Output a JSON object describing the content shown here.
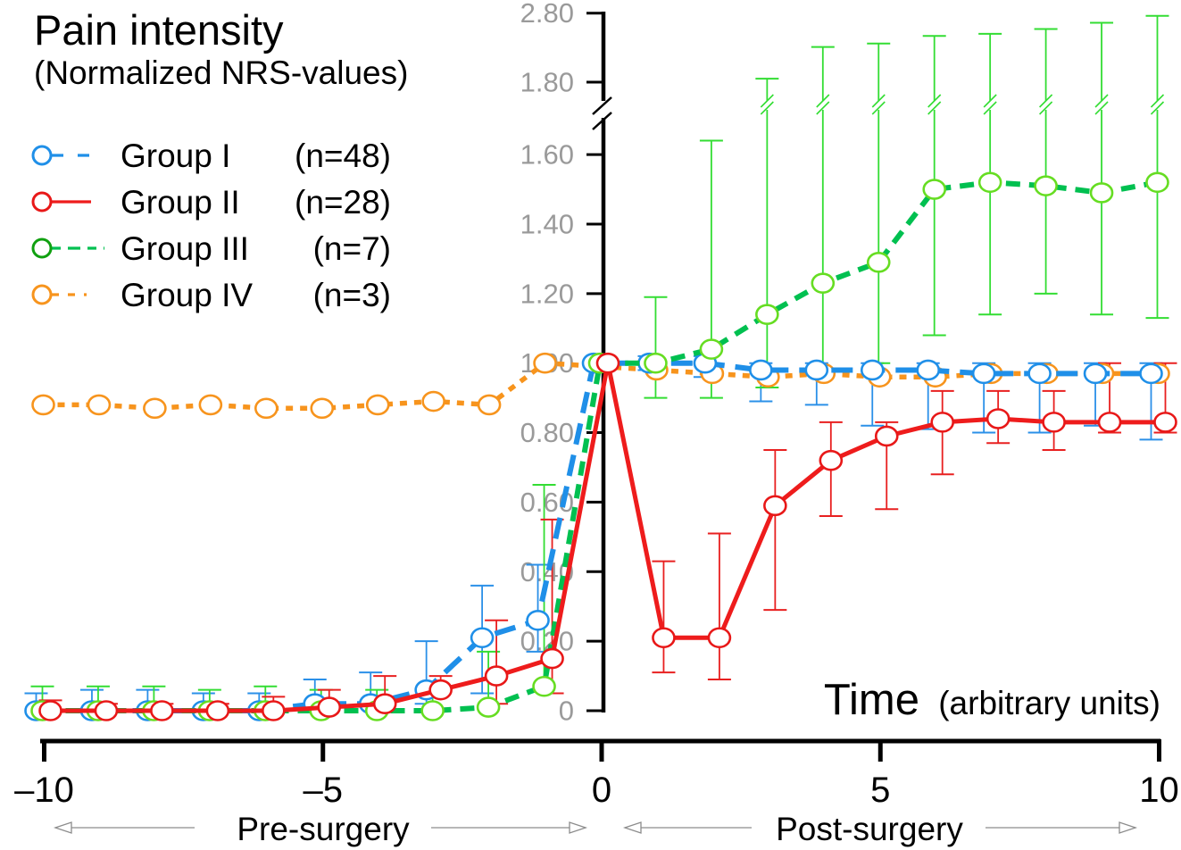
{
  "chart_data": {
    "type": "line",
    "title": "Pain intensity",
    "subtitle": "(Normalized NRS-values)",
    "xlabel": "Time",
    "xlabel_note": "(arbitrary units)",
    "ylabel": "Pain intensity (Normalized NRS-values)",
    "grid": false,
    "legend_position": "top-left",
    "xlim": [
      -10,
      10
    ],
    "ylim": [
      0,
      2.8
    ],
    "yaxis_break": [
      1.6,
      1.8
    ],
    "xticks": [
      -10,
      -5,
      0,
      5,
      10
    ],
    "xtick_labels": [
      "–10",
      "–5",
      "0",
      "5",
      "10"
    ],
    "yticks": [
      0,
      0.2,
      0.4,
      0.6,
      0.8,
      1.0,
      1.2,
      1.4,
      1.6,
      1.8,
      2.8
    ],
    "ytick_labels": [
      "0",
      "0.20",
      "0.40",
      "0.60",
      "0.80",
      "1.00",
      "1.20",
      "1.40",
      "1.60",
      "1.80",
      "2.80"
    ],
    "phase_annotations": [
      {
        "label": "Pre-surgery",
        "range": [
          -10,
          0
        ]
      },
      {
        "label": "Post-surgery",
        "range": [
          0,
          10
        ]
      }
    ],
    "x": [
      -10,
      -9,
      -8,
      -7,
      -6,
      -5,
      -4,
      -3,
      -2,
      -1,
      0,
      1,
      2,
      3,
      4,
      5,
      6,
      7,
      8,
      9,
      10
    ],
    "series": [
      {
        "name": "Group I",
        "n_label": "(n=48)",
        "line_style": "dashed",
        "color": "#1f8fe8",
        "marker_color": "#1f8fe8",
        "errorbar_color": "#2b90e8",
        "values": [
          0.0,
          0.0,
          0.0,
          0.0,
          0.0,
          0.02,
          0.02,
          0.06,
          0.21,
          0.26,
          1.0,
          1.0,
          1.0,
          0.98,
          0.98,
          0.98,
          0.98,
          0.97,
          0.97,
          0.97,
          0.97
        ],
        "error_upper": [
          0.05,
          0.06,
          0.06,
          0.05,
          0.05,
          0.09,
          0.11,
          0.2,
          0.36,
          0.42,
          null,
          1.02,
          1.02,
          1.0,
          1.0,
          1.0,
          1.0,
          1.0,
          1.0,
          1.0,
          1.0
        ],
        "error_lower": [
          null,
          null,
          null,
          null,
          null,
          null,
          null,
          0.02,
          0.05,
          0.17,
          null,
          0.98,
          0.96,
          0.89,
          0.88,
          0.82,
          0.81,
          0.8,
          0.8,
          0.82,
          0.78
        ]
      },
      {
        "name": "Group II",
        "n_label": "(n=28)",
        "line_style": "solid",
        "color": "#ee1c1c",
        "marker_color": "#e81818",
        "errorbar_color": "#e82020",
        "values": [
          0.0,
          0.0,
          0.0,
          0.0,
          0.0,
          0.01,
          0.02,
          0.06,
          0.1,
          0.15,
          1.0,
          0.21,
          0.21,
          0.59,
          0.72,
          0.79,
          0.83,
          0.84,
          0.83,
          0.83,
          0.83
        ],
        "error_upper": [
          0.03,
          0.02,
          0.02,
          0.02,
          0.04,
          0.06,
          0.1,
          0.1,
          0.26,
          0.55,
          null,
          0.43,
          0.51,
          0.75,
          0.83,
          0.83,
          0.92,
          0.92,
          0.92,
          1.0,
          1.0
        ],
        "error_lower": [
          null,
          null,
          null,
          null,
          null,
          null,
          null,
          null,
          0.02,
          0.05,
          null,
          0.11,
          0.09,
          0.29,
          0.56,
          0.58,
          0.68,
          0.77,
          0.75,
          0.8,
          0.8
        ]
      },
      {
        "name": "Group III",
        "n_label": "(n=7)",
        "line_style": "dashed",
        "color": "#00c050",
        "marker_color": "#66dd22",
        "legend_marker_color": "#10a010",
        "errorbar_color": "#33dd33",
        "values": [
          0.0,
          0.0,
          0.0,
          0.0,
          0.0,
          0.0,
          0.0,
          0.0,
          0.01,
          0.07,
          1.0,
          1.0,
          1.04,
          1.14,
          1.23,
          1.29,
          1.5,
          1.52,
          1.51,
          1.49,
          1.52
        ],
        "error_upper": [
          0.07,
          0.07,
          0.07,
          0.06,
          0.07,
          0.06,
          0.06,
          0.05,
          0.17,
          0.65,
          null,
          1.19,
          1.64,
          1.85,
          2.31,
          2.36,
          2.47,
          2.5,
          2.57,
          2.66,
          2.76
        ],
        "error_lower": [
          null,
          null,
          null,
          null,
          null,
          null,
          null,
          null,
          null,
          null,
          null,
          0.9,
          0.9,
          0.93,
          0.98,
          1.0,
          1.08,
          1.14,
          1.2,
          1.14,
          1.13
        ]
      },
      {
        "name": "Group IV",
        "n_label": "(n=3)",
        "line_style": "dotted",
        "color": "#f7941d",
        "marker_color": "#f7941d",
        "errorbar_color": "#f7941d",
        "values": [
          0.88,
          0.88,
          0.87,
          0.88,
          0.87,
          0.87,
          0.88,
          0.89,
          0.88,
          1.0,
          null,
          0.98,
          0.97,
          0.96,
          0.97,
          0.96,
          0.96,
          0.97,
          0.97,
          0.97,
          0.97
        ],
        "error_upper": [
          null,
          null,
          null,
          null,
          null,
          null,
          null,
          null,
          null,
          null,
          null,
          null,
          null,
          null,
          null,
          null,
          null,
          null,
          null,
          null,
          null
        ],
        "error_lower": [
          null,
          null,
          null,
          null,
          null,
          null,
          null,
          null,
          null,
          null,
          null,
          null,
          null,
          null,
          null,
          null,
          null,
          null,
          null,
          null,
          null
        ]
      }
    ]
  }
}
